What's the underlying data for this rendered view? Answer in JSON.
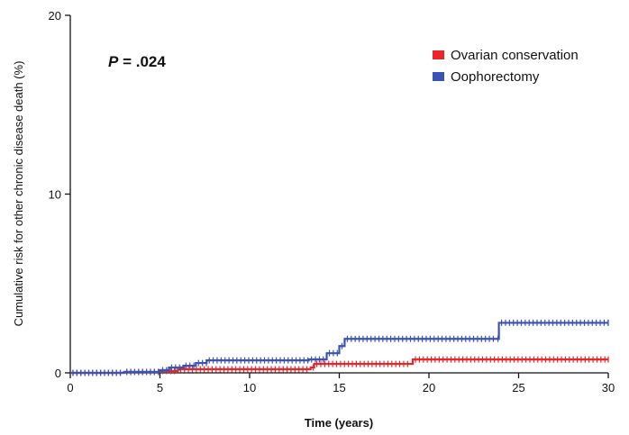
{
  "chart_data": {
    "type": "line",
    "step": true,
    "annotation": {
      "italic": "P",
      "text": " = .024"
    },
    "xlabel": "Time (years)",
    "ylabel": "Cumulative risk for other chronic disease death (%)",
    "xlim": [
      0,
      30
    ],
    "ylim": [
      0,
      20
    ],
    "xticks": [
      0,
      5,
      10,
      15,
      20,
      25,
      30
    ],
    "yticks": [
      0,
      10,
      20
    ],
    "grid": false,
    "legend_position": "top-right",
    "series": [
      {
        "name": "Ovarian conservation",
        "color": "#e8262b",
        "x": [
          0,
          3,
          5,
          6,
          13.3,
          13.4,
          13.6,
          19,
          19.1,
          30
        ],
        "y": [
          0,
          0.05,
          0.1,
          0.2,
          0.2,
          0.3,
          0.5,
          0.5,
          0.75,
          0.75
        ]
      },
      {
        "name": "Oophorectomy",
        "color": "#3a53b5",
        "x": [
          0,
          3,
          5,
          5.5,
          6.3,
          7,
          7.6,
          13.3,
          14.3,
          15,
          15.3,
          23.7,
          23.9,
          30
        ],
        "y": [
          0,
          0.05,
          0.15,
          0.3,
          0.4,
          0.55,
          0.7,
          0.75,
          1.1,
          1.5,
          1.9,
          1.9,
          2.8,
          2.8
        ]
      }
    ]
  }
}
